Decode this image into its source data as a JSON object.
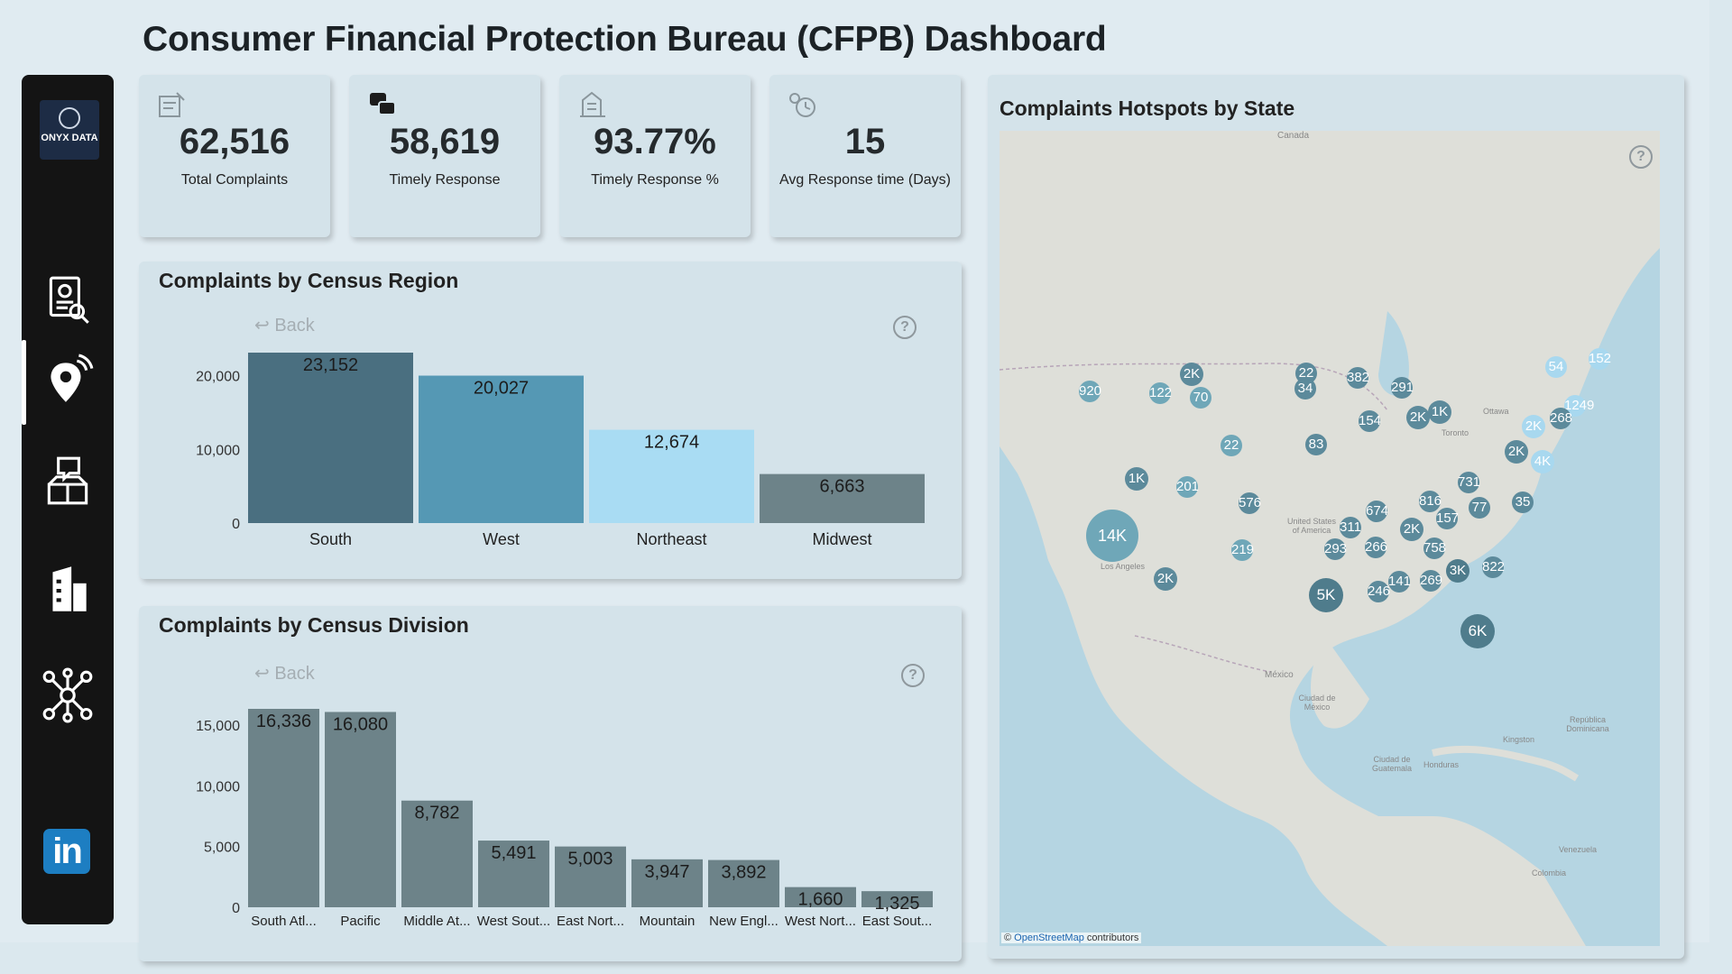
{
  "title": "Consumer Financial Protection Bureau (CFPB) Dashboard",
  "sidebar": {
    "logo_text": "ONYX DATA",
    "icons": [
      "report-search-icon",
      "location-pin-icon",
      "feedback-box-icon",
      "building-icon",
      "network-icon",
      "linkedin-icon"
    ],
    "linkedin_label": "in"
  },
  "kpis": [
    {
      "value": "62,516",
      "label": "Total Complaints",
      "icon": "complaint-form-icon"
    },
    {
      "value": "58,619",
      "label": "Timely Response",
      "icon": "chat-bubbles-icon"
    },
    {
      "value": "93.77%",
      "label": "Timely Response %",
      "icon": "building-check-icon"
    },
    {
      "value": "15",
      "label": "Avg Response time (Days)",
      "icon": "clock-gear-icon"
    }
  ],
  "region_chart": {
    "title": "Complaints by Census Region",
    "back_label": "Back",
    "help_label": "?"
  },
  "division_chart": {
    "title": "Complaints by Census Division",
    "back_label": "Back",
    "help_label": "?"
  },
  "map": {
    "title": "Complaints Hotspots by State",
    "credit_prefix": "© ",
    "credit_link": "OpenStreetMap",
    "credit_suffix": " contributors",
    "help_label": "?",
    "labels": [
      "Canada",
      "United States of America",
      "Los Angeles",
      "México",
      "Ciudad de México",
      "Ciudad de Guatemala",
      "Honduras",
      "Kingston",
      "República Dominicana",
      "Venezuela",
      "Colombia",
      "Ottawa",
      "Toronto"
    ],
    "bubbles": [
      {
        "label": "14K",
        "size": "xl",
        "color": "#6fa7b8"
      },
      {
        "label": "6K",
        "size": "l",
        "color": "#4f7c8c"
      },
      {
        "label": "5K",
        "size": "l",
        "color": "#4f7c8c"
      },
      {
        "label": "4K",
        "size": "m",
        "color": "#a8d8ef"
      },
      {
        "label": "3K",
        "size": "m",
        "color": "#4f7c8c"
      },
      {
        "label": "2K",
        "size": "m",
        "color": "#5c8a9b"
      },
      {
        "label": "2K",
        "size": "m",
        "color": "#5c8a9b"
      },
      {
        "label": "2K",
        "size": "m",
        "color": "#5c8a9b"
      },
      {
        "label": "2K",
        "size": "m",
        "color": "#a8d8ef"
      },
      {
        "label": "2K",
        "size": "m",
        "color": "#5c8a9b"
      },
      {
        "label": "2K",
        "size": "m",
        "color": "#5c8a9b"
      },
      {
        "label": "1K",
        "size": "m",
        "color": "#5c8a9b"
      },
      {
        "label": "1K",
        "size": "m",
        "color": "#5c8a9b"
      },
      {
        "label": "1249",
        "size": "s",
        "color": "#a8d8ef"
      },
      {
        "label": "920",
        "size": "s",
        "color": "#6fa7b8"
      },
      {
        "label": "822",
        "size": "s",
        "color": "#5c8a9b"
      },
      {
        "label": "816",
        "size": "s",
        "color": "#5c8a9b"
      },
      {
        "label": "758",
        "size": "s",
        "color": "#5c8a9b"
      },
      {
        "label": "731",
        "size": "s",
        "color": "#5c8a9b"
      },
      {
        "label": "674",
        "size": "s",
        "color": "#5c8a9b"
      },
      {
        "label": "576",
        "size": "s",
        "color": "#5c8a9b"
      },
      {
        "label": "382",
        "size": "s",
        "color": "#5c8a9b"
      },
      {
        "label": "311",
        "size": "s",
        "color": "#5c8a9b"
      },
      {
        "label": "293",
        "size": "s",
        "color": "#5c8a9b"
      },
      {
        "label": "291",
        "size": "s",
        "color": "#5c8a9b"
      },
      {
        "label": "269",
        "size": "s",
        "color": "#5c8a9b"
      },
      {
        "label": "268",
        "size": "s",
        "color": "#5c8a9b"
      },
      {
        "label": "266",
        "size": "s",
        "color": "#5c8a9b"
      },
      {
        "label": "246",
        "size": "s",
        "color": "#5c8a9b"
      },
      {
        "label": "219",
        "size": "s",
        "color": "#6fa7b8"
      },
      {
        "label": "201",
        "size": "s",
        "color": "#6fa7b8"
      },
      {
        "label": "157",
        "size": "s",
        "color": "#5c8a9b"
      },
      {
        "label": "154",
        "size": "s",
        "color": "#5c8a9b"
      },
      {
        "label": "152",
        "size": "s",
        "color": "#a8d8ef"
      },
      {
        "label": "141",
        "size": "s",
        "color": "#5c8a9b"
      },
      {
        "label": "122",
        "size": "s",
        "color": "#6fa7b8"
      },
      {
        "label": "83",
        "size": "s",
        "color": "#5c8a9b"
      },
      {
        "label": "77",
        "size": "s",
        "color": "#5c8a9b"
      },
      {
        "label": "70",
        "size": "s",
        "color": "#6fa7b8"
      },
      {
        "label": "54",
        "size": "s",
        "color": "#a8d8ef"
      },
      {
        "label": "35",
        "size": "s",
        "color": "#5c8a9b"
      },
      {
        "label": "34",
        "size": "s",
        "color": "#5c8a9b"
      },
      {
        "label": "22",
        "size": "s",
        "color": "#6fa7b8"
      },
      {
        "label": "22",
        "size": "s",
        "color": "#5c8a9b"
      }
    ]
  },
  "chart_data": [
    {
      "type": "bar",
      "title": "Complaints by Census Region",
      "categories": [
        "South",
        "West",
        "Northeast",
        "Midwest"
      ],
      "values": [
        23152,
        20027,
        12674,
        6663
      ],
      "value_labels": [
        "23,152",
        "20,027",
        "12,674",
        "6,663"
      ],
      "colors": [
        "#4a6f80",
        "#5598b4",
        "#a9dcf3",
        "#6d8389"
      ],
      "yticks": [
        "0",
        "10,000",
        "20,000"
      ],
      "ylim": [
        0,
        23152
      ],
      "xlabel": "",
      "ylabel": ""
    },
    {
      "type": "bar",
      "title": "Complaints by Census Division",
      "categories": [
        "South Atl...",
        "Pacific",
        "Middle At...",
        "West Sout...",
        "East Nort...",
        "Mountain",
        "New Engl...",
        "West Nort...",
        "East Sout..."
      ],
      "values": [
        16336,
        16080,
        8782,
        5491,
        5003,
        3947,
        3892,
        1660,
        1325
      ],
      "value_labels": [
        "16,336",
        "16,080",
        "8,782",
        "5,491",
        "5,003",
        "3,947",
        "3,892",
        "1,660",
        "1,325"
      ],
      "color": "#6d8389",
      "yticks": [
        "0",
        "5,000",
        "10,000",
        "15,000"
      ],
      "ylim": [
        0,
        16336
      ],
      "xlabel": "",
      "ylabel": ""
    }
  ]
}
